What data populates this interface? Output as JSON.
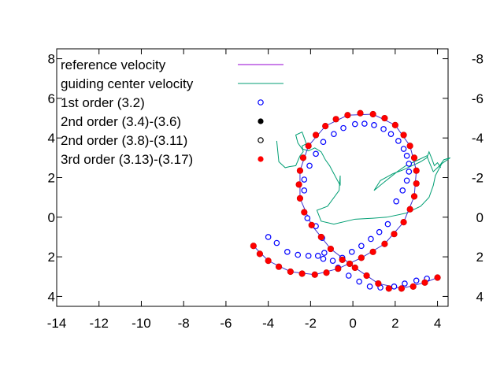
{
  "chart_data": {
    "type": "scatter",
    "xlim": [
      -14,
      4.5
    ],
    "ylim": [
      4.5,
      -8.5
    ],
    "x_ticks": [
      "-14",
      "-12",
      "-10",
      "-8",
      "-6",
      "-4",
      "-2",
      "0",
      "2",
      "4"
    ],
    "x_tick_values": [
      -14,
      -12,
      -10,
      -8,
      -6,
      -4,
      -2,
      0,
      2,
      4
    ],
    "y_ticks_right": [
      "-8",
      "-6",
      "-4",
      "-2",
      "0",
      "2",
      "4"
    ],
    "y_tick_values": [
      -8,
      -6,
      -4,
      -2,
      0,
      2,
      4
    ],
    "grid": false,
    "legend_position": "top-left",
    "legend": [
      {
        "label": "reference velocity",
        "style": "line",
        "color": "#9400d3"
      },
      {
        "label": "guiding center velocity",
        "style": "line",
        "color": "#009e73"
      },
      {
        "label": "1st order (3.2)",
        "style": "open-circle",
        "color": "#0000ff"
      },
      {
        "label": "2nd order (3.4)-(3.6)",
        "style": "filled-circle",
        "color": "#000000"
      },
      {
        "label": "2nd order (3.8)-(3.11)",
        "style": "open-circle",
        "color": "#000000"
      },
      {
        "label": "3rd order (3.13)-(3.17)",
        "style": "filled-circle",
        "color": "#ff0000"
      }
    ],
    "series": [
      {
        "name": "1st order (3.2)",
        "points": [
          [
            -4.0,
            1.0
          ],
          [
            -3.6,
            1.3
          ],
          [
            -3.1,
            1.75
          ],
          [
            -2.6,
            1.9
          ],
          [
            -2.1,
            1.95
          ],
          [
            -1.65,
            1.95
          ],
          [
            -1.35,
            1.8
          ],
          [
            -1.45,
            1.05
          ],
          [
            -1.75,
            0.45
          ],
          [
            -2.15,
            0.05
          ],
          [
            -2.3,
            -1.35
          ],
          [
            -2.3,
            -1.9
          ],
          [
            -2.05,
            -2.6
          ],
          [
            -1.75,
            -3.2
          ],
          [
            -1.4,
            -3.8
          ],
          [
            -0.9,
            -4.2
          ],
          [
            -0.45,
            -4.5
          ],
          [
            0.1,
            -4.7
          ],
          [
            0.55,
            -4.72
          ],
          [
            1.0,
            -4.65
          ],
          [
            1.45,
            -4.45
          ],
          [
            1.8,
            -4.2
          ],
          [
            2.15,
            -3.85
          ],
          [
            2.4,
            -3.45
          ],
          [
            2.55,
            -3.1
          ],
          [
            2.65,
            -2.7
          ],
          [
            2.65,
            -2.3
          ],
          [
            2.55,
            -1.85
          ],
          [
            2.35,
            -1.35
          ],
          [
            2.05,
            -0.8
          ],
          [
            1.65,
            0.35
          ],
          [
            1.25,
            0.75
          ],
          [
            0.85,
            1.1
          ],
          [
            0.4,
            1.45
          ],
          [
            -0.05,
            1.75
          ],
          [
            -0.5,
            2.05
          ],
          [
            -0.95,
            2.2
          ],
          [
            -1.4,
            2.1
          ],
          [
            -0.7,
            2.55
          ],
          [
            -0.2,
            2.95
          ],
          [
            0.3,
            3.25
          ],
          [
            0.8,
            3.5
          ],
          [
            1.3,
            3.55
          ],
          [
            1.95,
            3.5
          ],
          [
            2.45,
            3.35
          ],
          [
            3.0,
            3.2
          ],
          [
            3.5,
            3.1
          ],
          [
            4.0,
            3.05
          ]
        ]
      },
      {
        "name": "3rd order (3.13)-(3.17)",
        "points": [
          [
            -4.7,
            1.45
          ],
          [
            -4.4,
            1.85
          ],
          [
            -4.0,
            2.2
          ],
          [
            -3.5,
            2.5
          ],
          [
            -2.95,
            2.75
          ],
          [
            -2.4,
            2.85
          ],
          [
            -1.8,
            2.9
          ],
          [
            -1.25,
            2.8
          ],
          [
            -0.7,
            2.6
          ],
          [
            -0.15,
            2.35
          ],
          [
            0.4,
            2.05
          ],
          [
            0.95,
            1.75
          ],
          [
            1.5,
            1.35
          ],
          [
            1.95,
            0.85
          ],
          [
            2.4,
            0.25
          ],
          [
            2.7,
            -0.4
          ],
          [
            2.9,
            -1.05
          ],
          [
            3.0,
            -1.7
          ],
          [
            3.0,
            -2.35
          ],
          [
            2.9,
            -3.0
          ],
          [
            2.7,
            -3.6
          ],
          [
            2.4,
            -4.15
          ],
          [
            2.0,
            -4.65
          ],
          [
            1.5,
            -5.0
          ],
          [
            0.95,
            -5.2
          ],
          [
            0.35,
            -5.25
          ],
          [
            -0.25,
            -5.15
          ],
          [
            -0.8,
            -4.95
          ],
          [
            -1.3,
            -4.6
          ],
          [
            -1.75,
            -4.15
          ],
          [
            -2.1,
            -3.6
          ],
          [
            -2.35,
            -3.0
          ],
          [
            -2.5,
            -2.35
          ],
          [
            -2.55,
            -1.65
          ],
          [
            -2.5,
            -0.95
          ],
          [
            -2.3,
            -0.25
          ],
          [
            -1.95,
            0.4
          ],
          [
            -1.5,
            1.0
          ],
          [
            -1.05,
            1.6
          ],
          [
            -0.5,
            2.15
          ],
          [
            0.1,
            2.55
          ],
          [
            0.65,
            2.95
          ],
          [
            1.2,
            3.35
          ],
          [
            1.7,
            3.6
          ],
          [
            2.3,
            3.6
          ],
          [
            2.85,
            3.5
          ],
          [
            3.4,
            3.3
          ],
          [
            4.0,
            3.05
          ]
        ]
      },
      {
        "name": "reference velocity",
        "points": [
          [
            -4.7,
            1.45
          ],
          [
            -4.0,
            2.2
          ],
          [
            -2.95,
            2.75
          ],
          [
            -1.8,
            2.9
          ],
          [
            -0.7,
            2.6
          ],
          [
            0.4,
            2.05
          ],
          [
            1.5,
            1.35
          ],
          [
            2.4,
            0.25
          ],
          [
            2.9,
            -1.05
          ],
          [
            3.0,
            -2.35
          ],
          [
            2.7,
            -3.6
          ],
          [
            2.0,
            -4.65
          ],
          [
            0.95,
            -5.2
          ],
          [
            -0.25,
            -5.15
          ],
          [
            -1.3,
            -4.6
          ],
          [
            -2.1,
            -3.6
          ],
          [
            -2.5,
            -2.35
          ],
          [
            -2.5,
            -0.95
          ],
          [
            -1.95,
            0.4
          ],
          [
            -1.05,
            1.6
          ],
          [
            0.1,
            2.55
          ],
          [
            1.2,
            3.35
          ],
          [
            2.3,
            3.6
          ],
          [
            3.4,
            3.3
          ],
          [
            4.0,
            3.05
          ]
        ]
      },
      {
        "name": "guiding center velocity",
        "points": [
          [
            -3.6,
            -3.85
          ],
          [
            -3.5,
            -2.8
          ],
          [
            -3.2,
            -2.5
          ],
          [
            -3.0,
            -2.55
          ],
          [
            -2.7,
            -2.6
          ],
          [
            -2.6,
            -2.85
          ],
          [
            -2.5,
            -3.1
          ],
          [
            -2.35,
            -3.3
          ],
          [
            -2.4,
            -3.6
          ],
          [
            -2.2,
            -3.7
          ],
          [
            -2.3,
            -4.0
          ],
          [
            -2.4,
            -4.3
          ],
          [
            -2.7,
            -4.15
          ],
          [
            -2.6,
            -3.75
          ],
          [
            -2.4,
            -3.45
          ],
          [
            -2.1,
            -3.35
          ],
          [
            -1.8,
            -3.5
          ],
          [
            -1.5,
            -3.3
          ],
          [
            -1.3,
            -2.9
          ],
          [
            -1.1,
            -2.6
          ],
          [
            -0.95,
            -2.3
          ],
          [
            -0.6,
            -1.6
          ],
          [
            -0.6,
            -2.1
          ],
          [
            -0.65,
            -1.35
          ],
          [
            -1.2,
            -0.55
          ],
          [
            -1.7,
            -0.35
          ],
          [
            -1.5,
            0.2
          ],
          [
            -0.9,
            0.35
          ],
          [
            0.1,
            0.1
          ],
          [
            0.95,
            0.05
          ],
          [
            1.6,
            0.0
          ],
          [
            2.5,
            -0.2
          ],
          [
            3.2,
            -0.55
          ],
          [
            3.6,
            -1.0
          ],
          [
            3.8,
            -1.6
          ],
          [
            3.9,
            -2.1
          ],
          [
            4.2,
            -2.7
          ],
          [
            4.6,
            -3.0
          ],
          [
            4.3,
            -2.9
          ],
          [
            4.1,
            -2.6
          ],
          [
            3.8,
            -2.3
          ],
          [
            3.6,
            -2.8
          ],
          [
            3.5,
            -3.1
          ],
          [
            3.1,
            -2.9
          ],
          [
            2.5,
            -2.6
          ],
          [
            2.1,
            -2.3
          ],
          [
            1.4,
            -1.7
          ],
          [
            1.0,
            -1.35
          ],
          [
            1.3,
            -1.85
          ],
          [
            1.9,
            -2.2
          ],
          [
            2.4,
            -2.4
          ],
          [
            2.8,
            -2.6
          ],
          [
            3.2,
            -2.8
          ],
          [
            3.5,
            -3.0
          ],
          [
            3.6,
            -3.3
          ],
          [
            3.75,
            -2.9
          ],
          [
            3.85,
            -2.6
          ],
          [
            4.0,
            -2.75
          ],
          [
            4.15,
            -2.5
          ]
        ]
      }
    ]
  }
}
